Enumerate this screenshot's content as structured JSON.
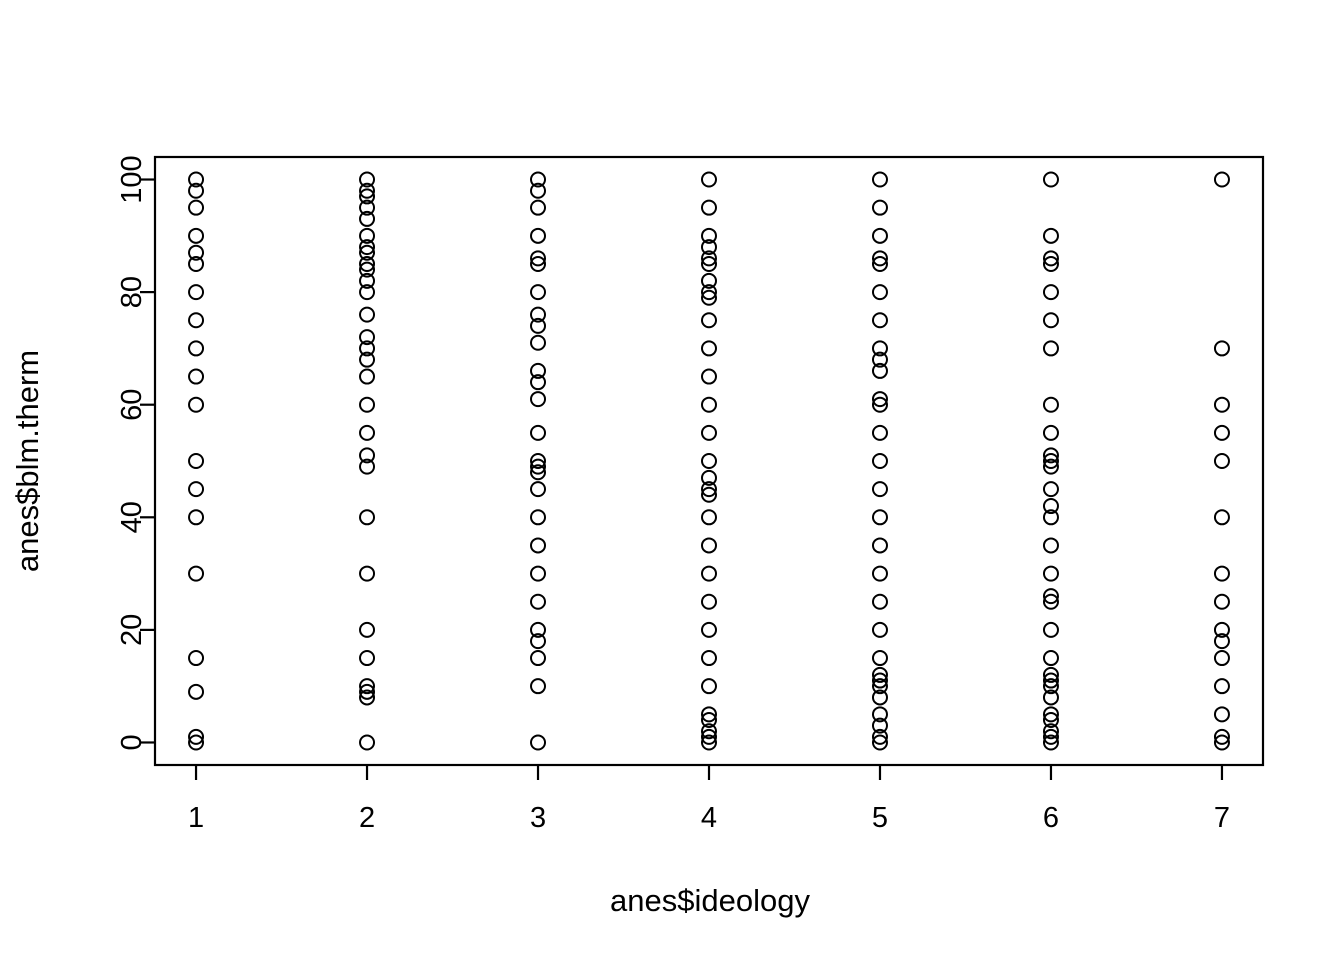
{
  "figure": {
    "background": "#ffffff",
    "foreground": "#000000"
  },
  "chart_data": {
    "type": "scatter",
    "title": "",
    "xlabel": "anes$ideology",
    "ylabel": "anes$blm.therm",
    "marker": "open-circle",
    "marker_color": "#000000",
    "marker_radius": 7,
    "grid": false,
    "legend": false,
    "x_ticks": [
      1,
      2,
      3,
      4,
      5,
      6,
      7
    ],
    "y_ticks": [
      0,
      20,
      40,
      60,
      80,
      100
    ],
    "xlim": [
      0.76,
      7.24
    ],
    "ylim": [
      -4,
      104
    ],
    "series": [
      {
        "name": "ideology-1",
        "x": 1,
        "values": [
          100,
          98,
          95,
          90,
          87,
          85,
          80,
          75,
          70,
          65,
          60,
          50,
          45,
          40,
          30,
          15,
          9,
          1,
          0
        ]
      },
      {
        "name": "ideology-2",
        "x": 2,
        "values": [
          100,
          98,
          97,
          95,
          93,
          90,
          88,
          87,
          85,
          84,
          82,
          80,
          76,
          72,
          70,
          68,
          65,
          60,
          55,
          51,
          49,
          40,
          30,
          20,
          15,
          10,
          9,
          8,
          0
        ]
      },
      {
        "name": "ideology-3",
        "x": 3,
        "values": [
          100,
          98,
          95,
          90,
          86,
          85,
          80,
          76,
          74,
          71,
          66,
          64,
          61,
          55,
          50,
          49,
          48,
          45,
          40,
          35,
          30,
          25,
          20,
          18,
          15,
          10,
          0
        ]
      },
      {
        "name": "ideology-4",
        "x": 4,
        "values": [
          100,
          95,
          90,
          88,
          86,
          85,
          82,
          80,
          79,
          75,
          70,
          65,
          60,
          55,
          50,
          47,
          45,
          44,
          40,
          35,
          30,
          25,
          20,
          15,
          10,
          5,
          4,
          2,
          1,
          0
        ]
      },
      {
        "name": "ideology-5",
        "x": 5,
        "values": [
          100,
          95,
          90,
          86,
          85,
          80,
          75,
          70,
          68,
          66,
          61,
          60,
          55,
          50,
          45,
          40,
          35,
          30,
          25,
          20,
          15,
          12,
          11,
          10,
          8,
          5,
          3,
          1,
          0
        ]
      },
      {
        "name": "ideology-6",
        "x": 6,
        "values": [
          100,
          90,
          86,
          85,
          80,
          75,
          70,
          60,
          55,
          51,
          50,
          49,
          45,
          42,
          40,
          35,
          30,
          26,
          25,
          20,
          15,
          12,
          11,
          10,
          8,
          5,
          4,
          2,
          1,
          0
        ]
      },
      {
        "name": "ideology-7",
        "x": 7,
        "values": [
          100,
          70,
          60,
          55,
          50,
          40,
          30,
          25,
          20,
          18,
          15,
          10,
          5,
          1,
          0
        ]
      }
    ]
  },
  "layout_note_values_visible_only": true
}
